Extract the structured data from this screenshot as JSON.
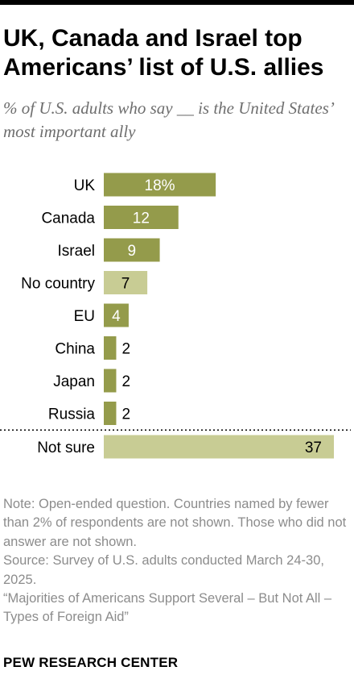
{
  "header": {
    "title": "UK, Canada and Israel top Americans’ list of U.S. allies",
    "subtitle": "% of U.S. adults who say __ is the United States’ most important ally"
  },
  "chart_data": {
    "type": "bar",
    "orientation": "horizontal",
    "categories": [
      "UK",
      "Canada",
      "Israel",
      "No country",
      "EU",
      "China",
      "Japan",
      "Russia",
      "Not sure"
    ],
    "values": [
      18,
      12,
      9,
      7,
      4,
      2,
      2,
      2,
      37
    ],
    "value_labels": [
      "18%",
      "12",
      "9",
      "7",
      "4",
      "2",
      "2",
      "2",
      "37"
    ],
    "colors": {
      "country": "#949b4b",
      "other": "#c8cc94"
    },
    "bar_color_group": [
      "country",
      "country",
      "country",
      "other",
      "country",
      "country",
      "country",
      "country",
      "other"
    ],
    "separator_before": "Not sure",
    "grid": false,
    "legend": "none"
  },
  "footer": {
    "note": "Note: Open-ended question. Countries named by fewer than 2% of respondents are not shown. Those who did not answer are not shown.",
    "source": "Source: Survey of U.S. adults conducted March 24-30, 2025.",
    "report": "“Majorities of Americans Support Several – But Not All – Types of Foreign Aid”",
    "org": "PEW RESEARCH CENTER"
  }
}
